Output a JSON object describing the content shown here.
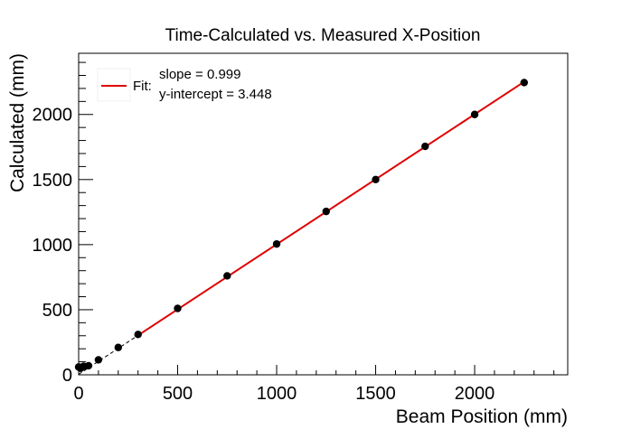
{
  "chart_data": {
    "type": "scatter",
    "title": "Time-Calculated vs. Measured X-Position",
    "xlabel": "Beam Position (mm)",
    "ylabel": "Calculated (mm)",
    "xlim": [
      0,
      2470
    ],
    "ylim": [
      0,
      2470
    ],
    "x_ticks": [
      0,
      500,
      1000,
      1500,
      2000
    ],
    "y_ticks": [
      0,
      500,
      1000,
      1500,
      2000
    ],
    "x_tick_labels": [
      "0",
      "500",
      "1000",
      "1500",
      "2000"
    ],
    "y_tick_labels": [
      "0",
      "500",
      "1000",
      "1500",
      "2000"
    ],
    "grid": false,
    "series": [
      {
        "x": [
          0,
          10,
          25,
          50,
          100,
          200,
          300,
          500,
          750,
          1000,
          1250,
          1500,
          1750,
          2000,
          2250
        ],
        "y": [
          60,
          50,
          65,
          70,
          115,
          210,
          310,
          510,
          760,
          1005,
          1255,
          1500,
          1755,
          2000,
          2245
        ],
        "color": "#000000"
      }
    ],
    "fit": {
      "slope": 0.999,
      "intercept": 3.448,
      "x_range": [
        300,
        2250
      ],
      "dashed_range": [
        0,
        2250
      ],
      "color": "#e00000"
    },
    "legend": {
      "position": "top-left",
      "label": "Fit:",
      "lines": [
        "slope = 0.999",
        "y-intercept = 3.448"
      ]
    }
  }
}
